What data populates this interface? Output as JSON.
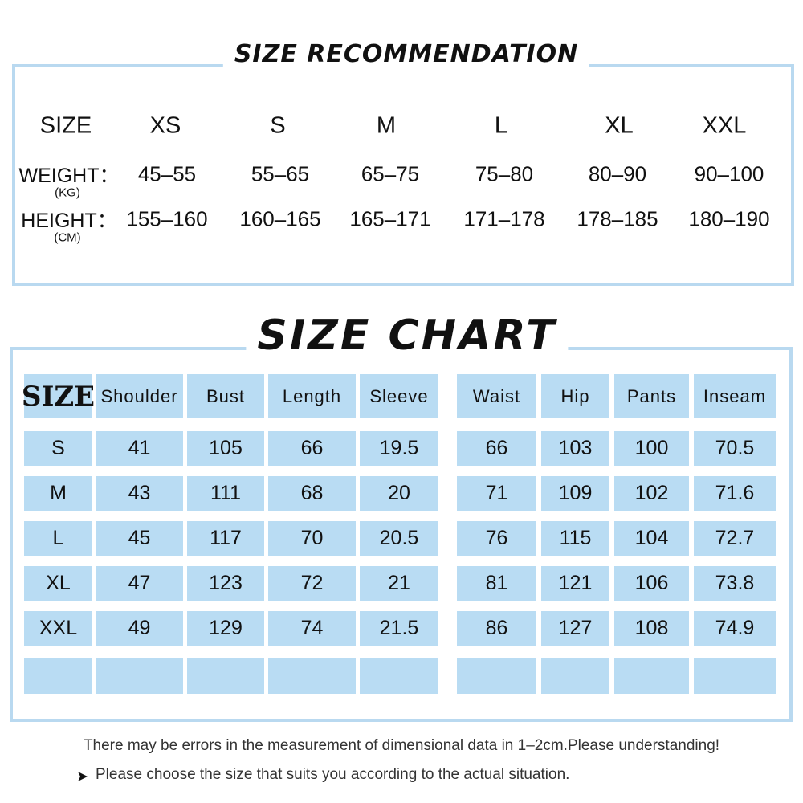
{
  "recommendation": {
    "title": "SIZE RECOMMENDATION",
    "header": [
      "SIZE",
      "XS",
      "S",
      "M",
      "L",
      "XL",
      "XXL"
    ],
    "weight": {
      "label": "WEIGHT：",
      "unit": "(KG)",
      "values": [
        "45–55",
        "55–65",
        "65–75",
        "75–80",
        "80–90",
        "90–100"
      ]
    },
    "height": {
      "label": "HEIGHT：",
      "unit": "(CM)",
      "values": [
        "155–160",
        "160–165",
        "165–171",
        "171–178",
        "178–185",
        "180–190"
      ]
    }
  },
  "chart": {
    "title": "SIZE CHART",
    "header": [
      "SIZE",
      "Shoulder",
      "Bust",
      "Length",
      "Sleeve",
      "Waist",
      "Hip",
      "Pants",
      "Inseam"
    ],
    "rows": [
      [
        "S",
        41,
        105,
        66,
        19.5,
        66,
        103,
        100,
        70.5
      ],
      [
        "M",
        43,
        111,
        68,
        20,
        71,
        109,
        102,
        71.6
      ],
      [
        "L",
        45,
        117,
        70,
        20.5,
        76,
        115,
        104,
        72.7
      ],
      [
        "XL",
        47,
        123,
        72,
        21,
        81,
        121,
        106,
        73.8
      ],
      [
        "XXL",
        49,
        129,
        74,
        21.5,
        86,
        127,
        108,
        74.9
      ]
    ]
  },
  "notes": [
    "There may be errors in the measurement of dimensional data in 1–2cm.Please understanding!",
    "Please choose the size that suits you according to the actual situation."
  ]
}
